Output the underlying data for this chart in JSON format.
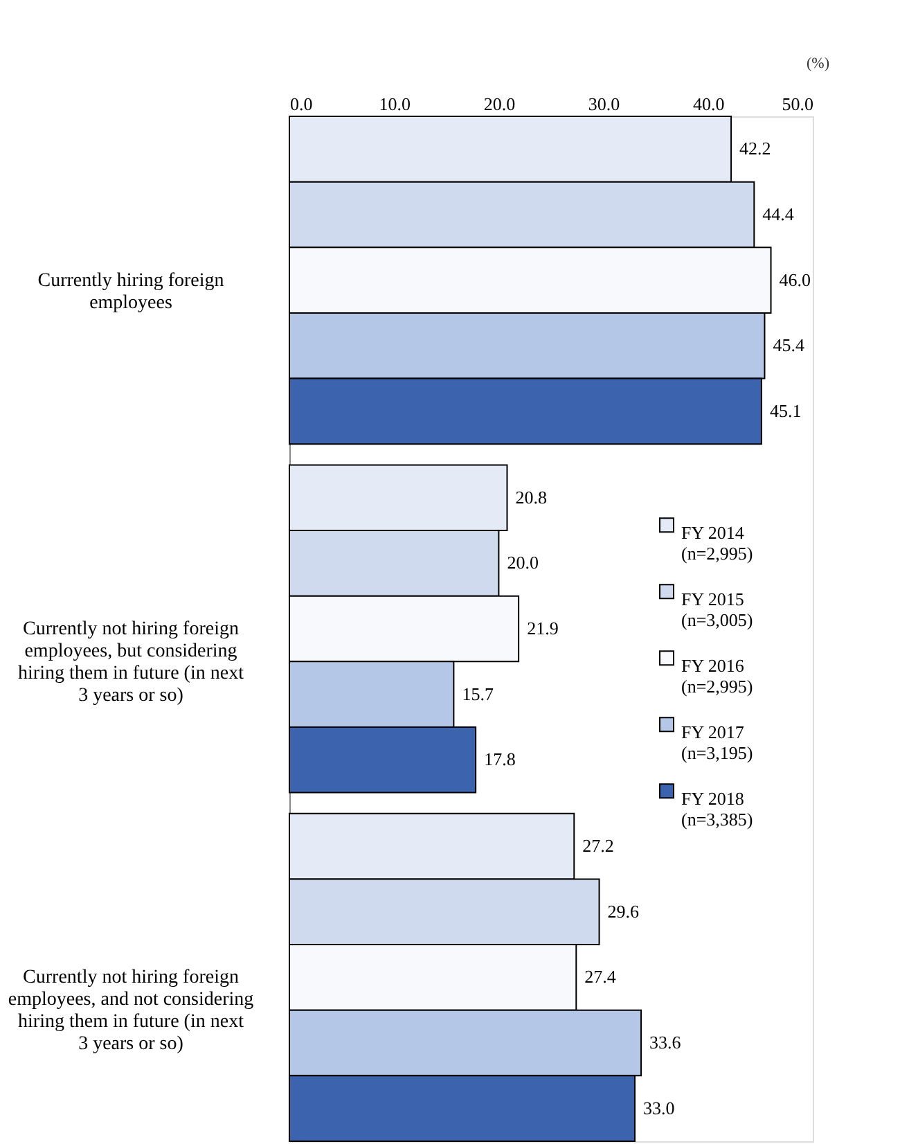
{
  "chart_data": {
    "type": "bar",
    "orientation": "horizontal",
    "categories": [
      "Currently hiring foreign employees",
      "Currently not hiring foreign employees, but considering hiring them in future (in next 3 years or so)",
      "Currently not hiring foreign employees, and not considering hiring them in future (in next 3 years or so)"
    ],
    "series": [
      {
        "name": "FY 2014 (n=2,995)",
        "color": "#e4ebf7",
        "values": [
          42.2,
          20.8,
          27.2
        ],
        "value_labels": [
          "42.2",
          "20.8",
          "27.2"
        ]
      },
      {
        "name": "FY 2015 (n=3,005)",
        "color": "#cfdaef",
        "values": [
          44.4,
          20.0,
          29.6
        ],
        "value_labels": [
          "44.4",
          "20.0",
          "29.6"
        ]
      },
      {
        "name": "FY 2016 (n=2,995)",
        "color": "#f7f9fc",
        "values": [
          46.0,
          21.9,
          27.4
        ],
        "value_labels": [
          "46.0",
          "21.9",
          "27.4"
        ]
      },
      {
        "name": "FY 2017 (n=3,195)",
        "color": "#b4c7e7",
        "values": [
          45.4,
          15.7,
          33.6
        ],
        "value_labels": [
          "45.4",
          "15.7",
          "33.6"
        ]
      },
      {
        "name": "FY 2018 (n=3,385)",
        "color": "#3c64ae",
        "values": [
          45.1,
          17.8,
          33.0
        ],
        "value_labels": [
          "45.1",
          "17.8",
          "33.0"
        ]
      }
    ],
    "xlim": [
      0,
      50
    ],
    "xticks": [
      {
        "value": 0,
        "label": "0.0"
      },
      {
        "value": 10,
        "label": "10.0"
      },
      {
        "value": 20,
        "label": "20.0"
      },
      {
        "value": 30,
        "label": "30.0"
      },
      {
        "value": 40,
        "label": "40.0"
      },
      {
        "value": 50,
        "label": "50.0"
      }
    ],
    "annotations": [
      "(%)"
    ],
    "grid": false,
    "legend": "right"
  }
}
